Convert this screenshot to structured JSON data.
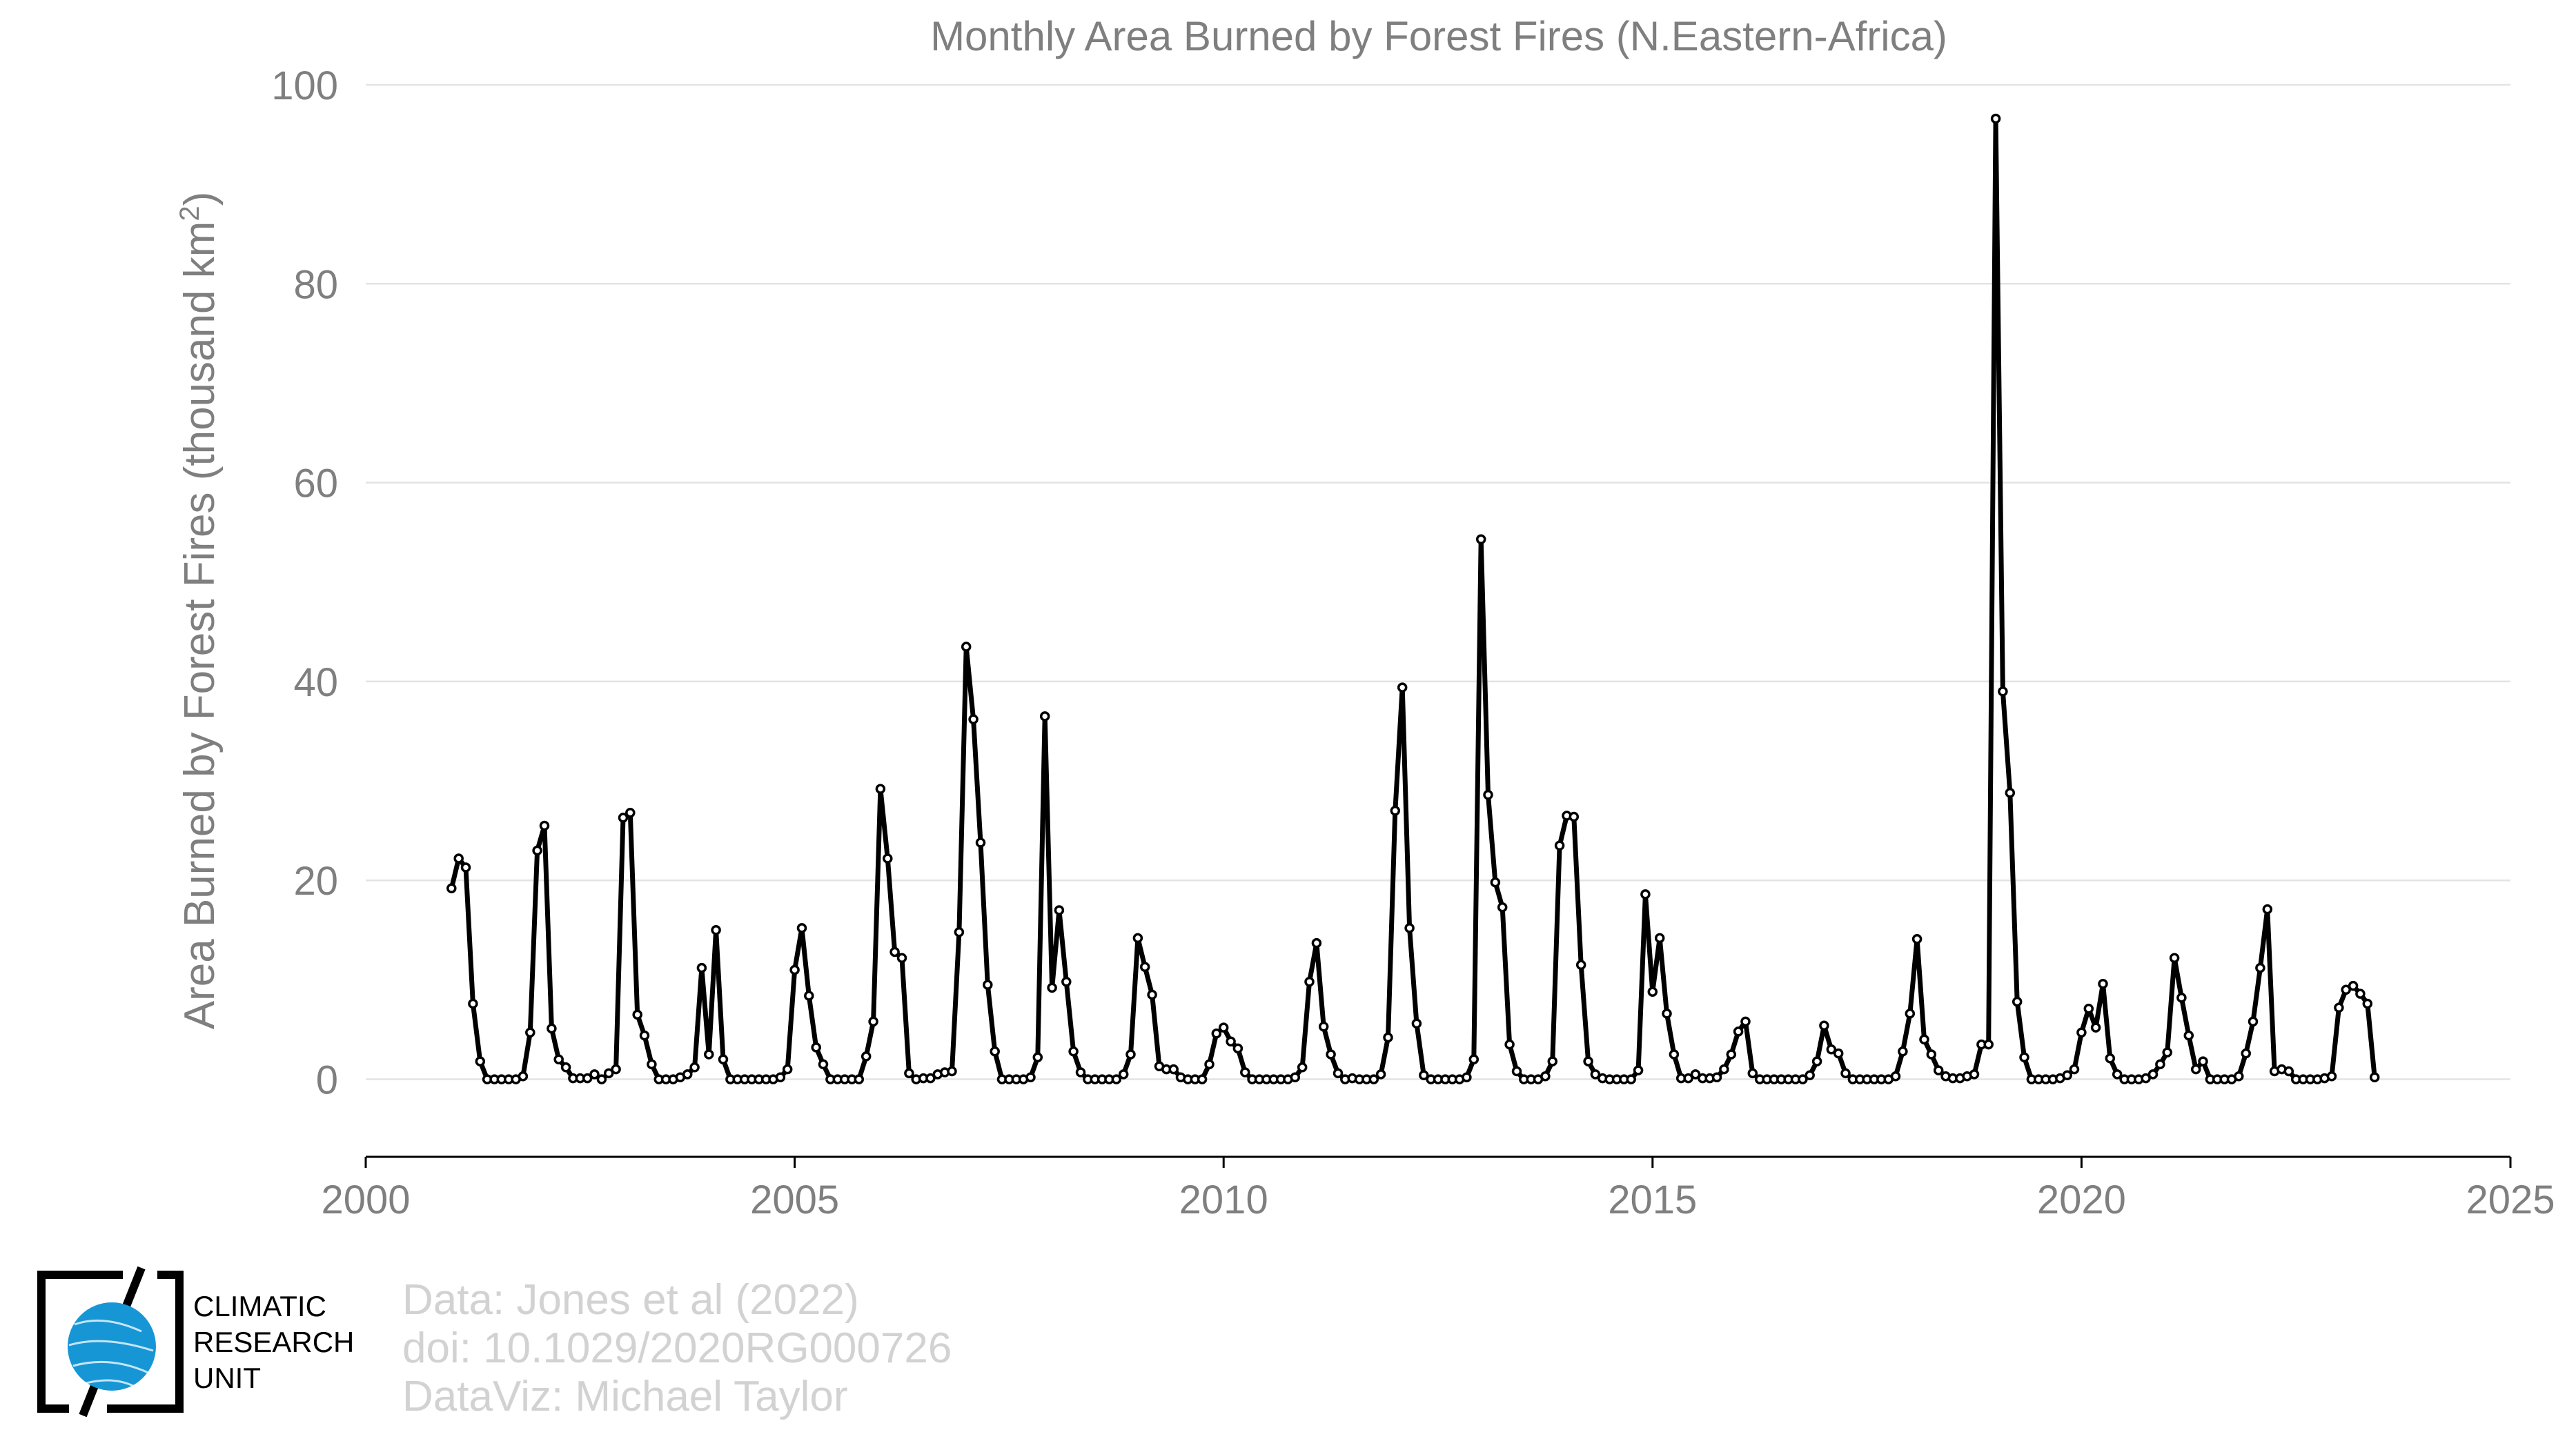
{
  "chart_data": {
    "type": "line",
    "title": "Monthly Area Burned by Forest Fires (N.Eastern-Africa)",
    "ylabel": "Area Burned by Forest Fires (thousand km²)",
    "ylabel_main": "Area Burned by Forest Fires (thousand km",
    "ylabel_sup": "2",
    "ylabel_end": ")",
    "xlim": [
      2000,
      2025
    ],
    "ylim": [
      -7.8,
      100
    ],
    "x_ticks": [
      2000,
      2005,
      2010,
      2015,
      2020,
      2025
    ],
    "y_ticks": [
      0,
      20,
      40,
      60,
      80,
      100
    ],
    "grid": "horizontal",
    "x_start": "2001-01",
    "x_step": "monthly",
    "series": [
      {
        "values": [
          19.2,
          22.2,
          21.3,
          7.6,
          1.8,
          0,
          0,
          0,
          0,
          0,
          0.3,
          4.7,
          23.0,
          25.5,
          5.1,
          2.0,
          1.2,
          0.1,
          0.1,
          0.1,
          0.5,
          0,
          0.6,
          1.0,
          26.3,
          26.8,
          6.5,
          4.4,
          1.5,
          0,
          0,
          0,
          0.2,
          0.5,
          1.2,
          11.2,
          2.5,
          15.0,
          2.0,
          0,
          0,
          0,
          0,
          0,
          0,
          0,
          0.2,
          1.0,
          11.0,
          15.2,
          8.4,
          3.2,
          1.5,
          0,
          0,
          0,
          0,
          0,
          2.3,
          5.8,
          29.2,
          22.2,
          12.8,
          12.2,
          0.6,
          0,
          0.1,
          0.1,
          0.5,
          0.7,
          0.8,
          14.8,
          43.5,
          36.2,
          23.8,
          9.5,
          2.8,
          0,
          0,
          0,
          0,
          0.2,
          2.2,
          36.5,
          9.2,
          17.0,
          9.8,
          2.8,
          0.7,
          0,
          0,
          0,
          0,
          0,
          0.5,
          2.5,
          14.2,
          11.3,
          8.5,
          1.3,
          1.0,
          1.0,
          0.2,
          0,
          0,
          0,
          1.5,
          4.6,
          5.2,
          3.8,
          3.1,
          0.7,
          0,
          0,
          0,
          0,
          0,
          0,
          0.2,
          1.2,
          9.8,
          13.7,
          5.3,
          2.5,
          0.6,
          0,
          0.1,
          0,
          0,
          0,
          0.5,
          4.2,
          27.0,
          39.4,
          15.2,
          5.6,
          0.4,
          0,
          0,
          0,
          0,
          0,
          0.2,
          2.0,
          54.3,
          28.6,
          19.8,
          17.3,
          3.5,
          0.8,
          0,
          0,
          0,
          0.3,
          1.8,
          23.5,
          26.5,
          26.4,
          11.5,
          1.8,
          0.5,
          0.1,
          0,
          0,
          0,
          0,
          0.9,
          18.6,
          8.8,
          14.2,
          6.6,
          2.5,
          0.1,
          0.1,
          0.5,
          0.1,
          0.1,
          0.2,
          1.0,
          2.5,
          4.8,
          5.8,
          0.6,
          0,
          0,
          0,
          0,
          0,
          0,
          0,
          0.4,
          1.8,
          5.4,
          3.0,
          2.6,
          0.6,
          0,
          0,
          0,
          0,
          0,
          0,
          0.3,
          2.8,
          6.6,
          14.1,
          4.0,
          2.5,
          0.9,
          0.3,
          0.1,
          0.1,
          0.3,
          0.5,
          3.5,
          3.5,
          96.6,
          39.0,
          28.8,
          7.8,
          2.2,
          0,
          0,
          0,
          0,
          0.1,
          0.4,
          1.0,
          4.7,
          7.1,
          5.2,
          9.6,
          2.1,
          0.5,
          0,
          0,
          0,
          0.1,
          0.5,
          1.5,
          2.7,
          12.2,
          8.2,
          4.4,
          1.0,
          1.8,
          0,
          0,
          0,
          0,
          0.3,
          2.6,
          5.8,
          11.2,
          17.1,
          0.8,
          1.0,
          0.8,
          0,
          0,
          0,
          0,
          0.1,
          0.3,
          7.2,
          9.0,
          9.4,
          8.6,
          7.6,
          0.2
        ]
      }
    ]
  },
  "credits": {
    "line1": "Data: Jones et al (2022)",
    "line2": "doi: 10.1029/2020RG000726",
    "line3": "DataViz: Michael Taylor"
  },
  "logo": {
    "line1": "CLIMATIC",
    "line2": "RESEARCH",
    "line3": "UNIT",
    "globe_color": "#1796d6"
  }
}
